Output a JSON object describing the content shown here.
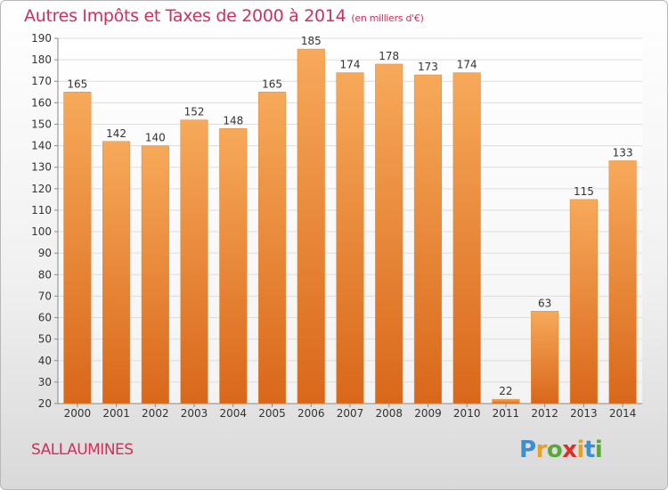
{
  "header": {
    "title": "Autres Impôts et Taxes de 2000 à 2014",
    "unit": "(en milliers d'€)"
  },
  "footer": {
    "city": "SALLAUMINES",
    "logo": {
      "letters": [
        "P",
        "r",
        "o",
        "x",
        "i",
        "t",
        "i"
      ],
      "colors": [
        "#3a8fd0",
        "#e9a020",
        "#5aa83a",
        "#d9302a",
        "#e9a020",
        "#3a8fd0",
        "#5aa83a"
      ]
    }
  },
  "colors": {
    "bar_top": "#f7a95a",
    "bar_bottom": "#d9671a",
    "title": "#d0305a"
  },
  "chart_data": {
    "type": "bar",
    "title": "Autres Impôts et Taxes de 2000 à 2014",
    "categories": [
      "2000",
      "2001",
      "2002",
      "2003",
      "2004",
      "2005",
      "2006",
      "2007",
      "2008",
      "2009",
      "2010",
      "2011",
      "2012",
      "2013",
      "2014"
    ],
    "values": [
      165,
      142,
      140,
      152,
      148,
      165,
      185,
      174,
      178,
      173,
      174,
      22,
      63,
      115,
      133
    ],
    "yticks": [
      20,
      30,
      40,
      50,
      60,
      70,
      80,
      90,
      100,
      110,
      120,
      130,
      140,
      150,
      160,
      170,
      180,
      190
    ],
    "ylim": [
      20,
      190
    ],
    "grid": true,
    "legend": "none"
  }
}
